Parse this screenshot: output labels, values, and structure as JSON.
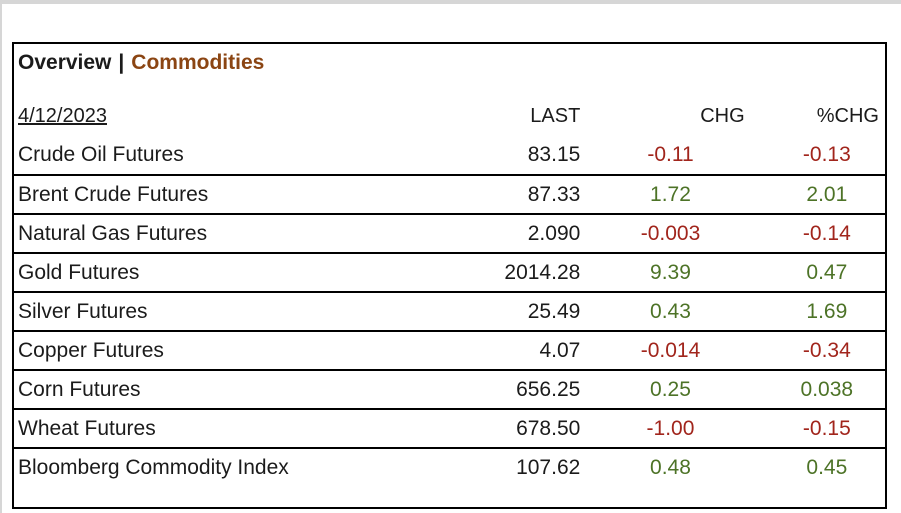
{
  "colors": {
    "accent": "#8B4513",
    "positive": "#4d7327",
    "negative": "#a1251c",
    "text": "#1b1b1b",
    "border": "#000000",
    "window_edge": "#d6d6d6"
  },
  "header": {
    "title_primary": "Overview",
    "separator": "|",
    "title_secondary": "Commodities"
  },
  "table": {
    "date": "4/12/2023",
    "columns": [
      "LAST",
      "CHG",
      "%CHG"
    ],
    "rows": [
      {
        "name": "Crude Oil Futures",
        "last": "83.15",
        "chg": "-0.11",
        "pchg": "-0.13",
        "trend": "down"
      },
      {
        "name": "Brent Crude Futures",
        "last": "87.33",
        "chg": "1.72",
        "pchg": "2.01",
        "trend": "up"
      },
      {
        "name": "Natural Gas Futures",
        "last": "2.090",
        "chg": "-0.003",
        "pchg": "-0.14",
        "trend": "down"
      },
      {
        "name": "Gold Futures",
        "last": "2014.28",
        "chg": "9.39",
        "pchg": "0.47",
        "trend": "up"
      },
      {
        "name": "Silver Futures",
        "last": "25.49",
        "chg": "0.43",
        "pchg": "1.69",
        "trend": "up"
      },
      {
        "name": "Copper Futures",
        "last": "4.07",
        "chg": "-0.014",
        "pchg": "-0.34",
        "trend": "down"
      },
      {
        "name": "Corn Futures",
        "last": "656.25",
        "chg": "0.25",
        "pchg": "0.038",
        "trend": "up"
      },
      {
        "name": "Wheat Futures",
        "last": "678.50",
        "chg": "-1.00",
        "pchg": "-0.15",
        "trend": "down"
      },
      {
        "name": "Bloomberg Commodity Index",
        "last": "107.62",
        "chg": "0.48",
        "pchg": "0.45",
        "trend": "up"
      }
    ]
  }
}
